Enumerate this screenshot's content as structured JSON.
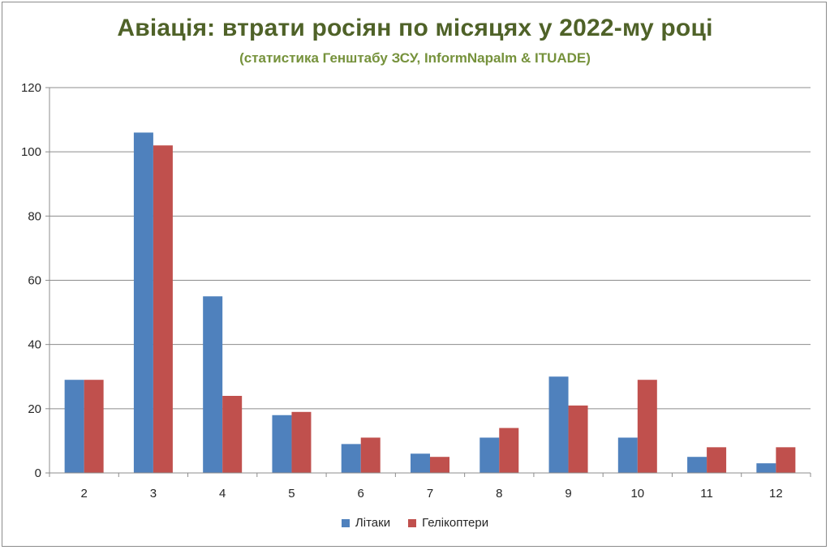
{
  "chart_data": {
    "type": "bar",
    "title": "Авіація: втрати росіян по місяцях у 2022-му році",
    "subtitle": "(статистика Генштабу ЗСУ, InformNapalm & ITUADE)",
    "categories": [
      "2",
      "3",
      "4",
      "5",
      "6",
      "7",
      "8",
      "9",
      "10",
      "11",
      "12"
    ],
    "series": [
      {
        "name": "Літаки",
        "color": "#4f81bd",
        "values": [
          29,
          106,
          55,
          18,
          9,
          6,
          11,
          30,
          11,
          5,
          3
        ]
      },
      {
        "name": "Гелікоптери",
        "color": "#c0504d",
        "values": [
          29,
          102,
          24,
          19,
          11,
          5,
          14,
          21,
          29,
          8,
          8
        ]
      }
    ],
    "yticks": [
      "0",
      "20",
      "40",
      "60",
      "80",
      "100",
      "120"
    ],
    "ylim": [
      0,
      120
    ],
    "grid": true,
    "legend_position": "bottom"
  }
}
